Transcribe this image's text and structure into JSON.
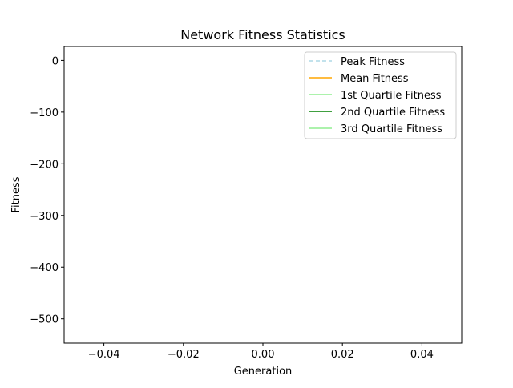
{
  "chart_data": {
    "type": "line",
    "title": "Network Fitness Statistics",
    "xlabel": "Generation",
    "ylabel": "Fitness",
    "xlim": [
      -0.05,
      0.05
    ],
    "ylim": [
      -547,
      27
    ],
    "xticks": [
      -0.04,
      -0.02,
      0.0,
      0.02,
      0.04
    ],
    "xtick_labels": [
      "−0.04",
      "−0.02",
      "0.00",
      "0.02",
      "0.04"
    ],
    "yticks": [
      0,
      -100,
      -200,
      -300,
      -400,
      -500
    ],
    "ytick_labels": [
      "0",
      "−100",
      "−200",
      "−300",
      "−400",
      "−500"
    ],
    "grid": false,
    "legend_position": "upper right",
    "series": [
      {
        "name": "Peak Fitness",
        "color": "#add8e6",
        "linestyle": "dashed",
        "x": [],
        "y": []
      },
      {
        "name": "Mean Fitness",
        "color": "#ffa500",
        "linestyle": "solid",
        "x": [],
        "y": []
      },
      {
        "name": "1st Quartile Fitness",
        "color": "#90ee90",
        "linestyle": "solid",
        "x": [],
        "y": []
      },
      {
        "name": "2nd Quartile Fitness",
        "color": "#008000",
        "linestyle": "solid",
        "x": [],
        "y": []
      },
      {
        "name": "3rd Quartile Fitness",
        "color": "#90ee90",
        "linestyle": "solid",
        "x": [],
        "y": []
      }
    ]
  }
}
